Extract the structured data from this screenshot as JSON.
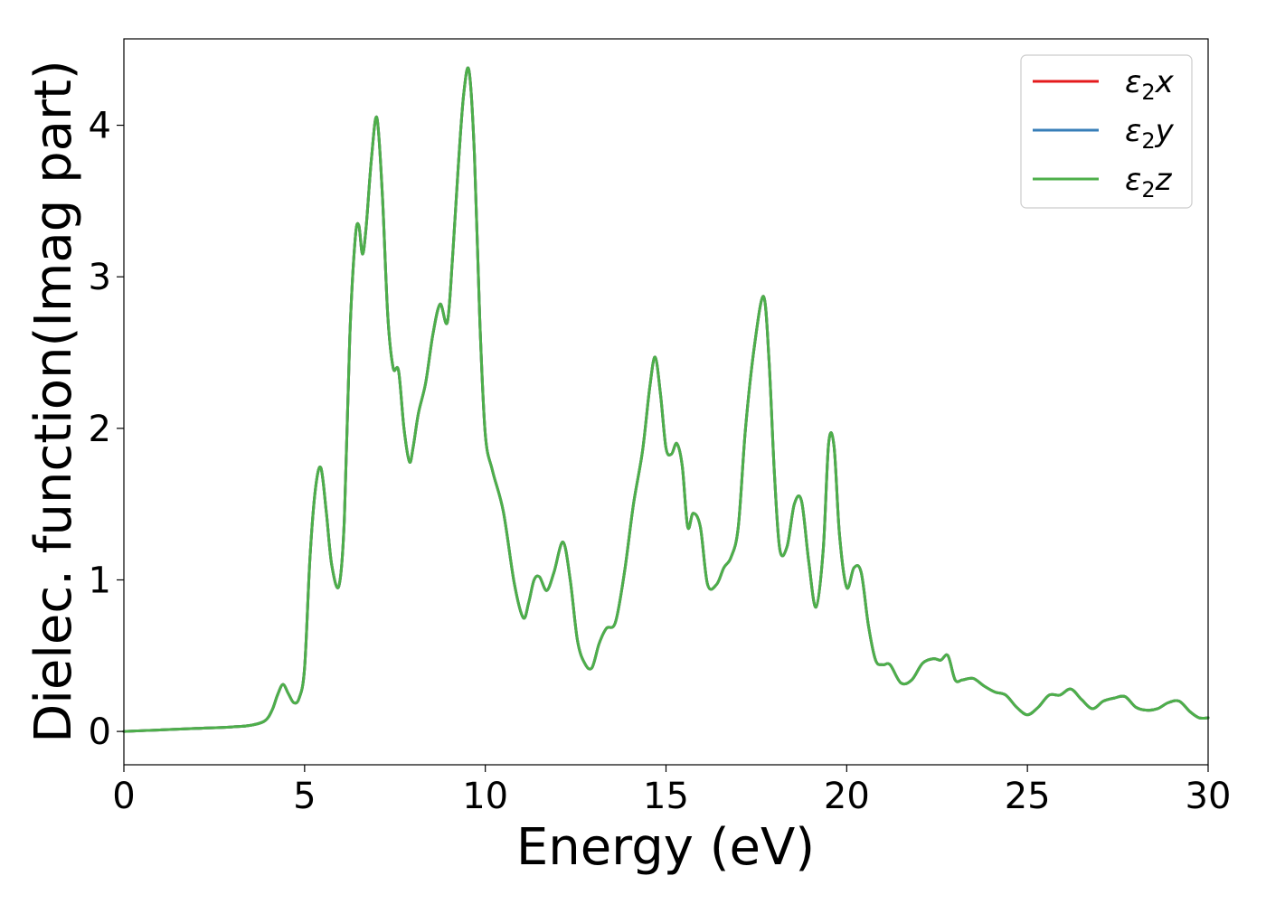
{
  "chart_data": {
    "type": "line",
    "title": "",
    "xlabel": "Energy (eV)",
    "ylabel": "Dielec. function(Imag part)",
    "xlim": [
      0,
      30
    ],
    "ylim": [
      -0.22,
      4.57
    ],
    "xticks": [
      0,
      5,
      10,
      15,
      20,
      25,
      30
    ],
    "yticks": [
      0,
      1,
      2,
      3,
      4
    ],
    "grid": false,
    "legend_position": "top-right",
    "colors": {
      "x": "#e41a1c",
      "y": "#377eb8",
      "z": "#4daf4a"
    },
    "series": [
      {
        "name": "ε₂x",
        "legend_base": "ε",
        "legend_sub": "2",
        "legend_var": "x",
        "color": "#e41a1c"
      },
      {
        "name": "ε₂y",
        "legend_base": "ε",
        "legend_sub": "2",
        "legend_var": "y",
        "color": "#377eb8"
      },
      {
        "name": "ε₂z",
        "legend_base": "ε",
        "legend_sub": "2",
        "legend_var": "z",
        "color": "#4daf4a"
      }
    ],
    "x": [
      0,
      1,
      2,
      3,
      3.5,
      3.9,
      4.1,
      4.25,
      4.4,
      4.55,
      4.7,
      4.85,
      5.0,
      5.15,
      5.3,
      5.45,
      5.6,
      5.75,
      5.95,
      6.1,
      6.25,
      6.4,
      6.5,
      6.6,
      6.7,
      6.85,
      7.0,
      7.15,
      7.3,
      7.45,
      7.6,
      7.75,
      7.9,
      8.0,
      8.15,
      8.35,
      8.55,
      8.75,
      8.95,
      9.1,
      9.25,
      9.4,
      9.55,
      9.7,
      9.85,
      10.0,
      10.2,
      10.5,
      10.8,
      11.05,
      11.2,
      11.35,
      11.5,
      11.7,
      11.9,
      12.15,
      12.35,
      12.55,
      12.75,
      12.95,
      13.15,
      13.35,
      13.6,
      13.85,
      14.1,
      14.35,
      14.55,
      14.7,
      14.85,
      15.0,
      15.15,
      15.3,
      15.45,
      15.6,
      15.75,
      15.95,
      16.15,
      16.4,
      16.6,
      16.8,
      17.0,
      17.2,
      17.45,
      17.7,
      17.85,
      18.0,
      18.15,
      18.35,
      18.55,
      18.75,
      18.95,
      19.15,
      19.35,
      19.5,
      19.65,
      19.8,
      20.0,
      20.2,
      20.4,
      20.6,
      20.8,
      21.0,
      21.2,
      21.5,
      21.8,
      22.1,
      22.4,
      22.6,
      22.8,
      23.0,
      23.2,
      23.5,
      23.8,
      24.1,
      24.4,
      24.7,
      25.0,
      25.3,
      25.6,
      25.9,
      26.2,
      26.5,
      26.8,
      27.1,
      27.4,
      27.7,
      28.0,
      28.3,
      28.6,
      28.9,
      29.2,
      29.5,
      29.75,
      30.0
    ],
    "values": [
      0.0,
      0.01,
      0.02,
      0.03,
      0.04,
      0.07,
      0.14,
      0.24,
      0.31,
      0.25,
      0.19,
      0.22,
      0.42,
      1.15,
      1.6,
      1.74,
      1.45,
      1.1,
      0.96,
      1.4,
      2.6,
      3.25,
      3.34,
      3.15,
      3.32,
      3.78,
      4.05,
      3.55,
      2.75,
      2.4,
      2.38,
      2.0,
      1.78,
      1.87,
      2.1,
      2.3,
      2.62,
      2.82,
      2.7,
      3.15,
      3.72,
      4.2,
      4.36,
      3.8,
      2.7,
      1.96,
      1.72,
      1.45,
      0.98,
      0.75,
      0.85,
      1.0,
      1.02,
      0.93,
      1.05,
      1.25,
      1.0,
      0.6,
      0.45,
      0.42,
      0.58,
      0.68,
      0.72,
      1.05,
      1.5,
      1.85,
      2.27,
      2.47,
      2.22,
      1.87,
      1.83,
      1.9,
      1.75,
      1.35,
      1.44,
      1.35,
      0.97,
      0.97,
      1.08,
      1.15,
      1.35,
      2.0,
      2.55,
      2.87,
      2.45,
      1.7,
      1.2,
      1.22,
      1.5,
      1.52,
      1.12,
      0.82,
      1.2,
      1.9,
      1.88,
      1.3,
      0.95,
      1.08,
      1.05,
      0.7,
      0.47,
      0.44,
      0.44,
      0.32,
      0.34,
      0.45,
      0.48,
      0.47,
      0.5,
      0.34,
      0.34,
      0.35,
      0.3,
      0.26,
      0.24,
      0.16,
      0.11,
      0.16,
      0.24,
      0.24,
      0.28,
      0.21,
      0.15,
      0.2,
      0.22,
      0.23,
      0.16,
      0.14,
      0.15,
      0.19,
      0.2,
      0.13,
      0.09,
      0.09
    ]
  }
}
